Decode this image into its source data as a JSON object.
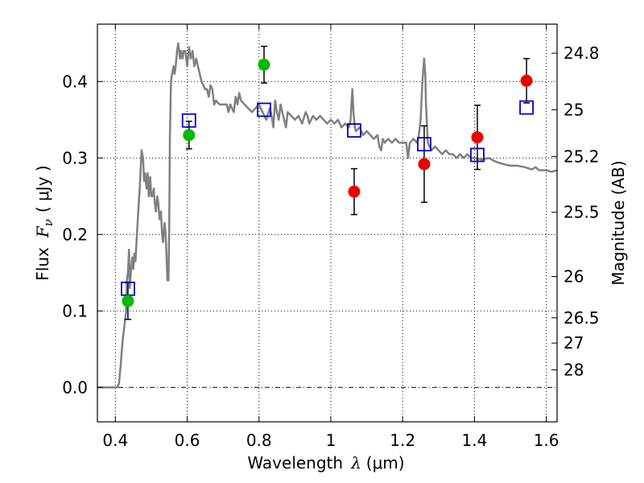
{
  "chart_data": {
    "type": "scatter",
    "xlabel_text": "Wavelength",
    "xlabel_symbol": "λ",
    "xlabel_unit": "(μm)",
    "ylabel_text": "Flux",
    "ylabel_symbol": "F",
    "ylabel_subscript": "ν",
    "ylabel_unit": "( μJy )",
    "y2label": "Magnitude (AB)",
    "xlim": [
      0.35,
      1.63
    ],
    "ylim": [
      -0.045,
      0.475
    ],
    "grid": true,
    "x_ticks": [
      0.4,
      0.6,
      0.8,
      1.0,
      1.2,
      1.4,
      1.6
    ],
    "x_tick_labels": [
      "0.4",
      "0.6",
      "0.8",
      "1",
      "1.2",
      "1.4",
      "1.6"
    ],
    "y_ticks": [
      0.0,
      0.1,
      0.2,
      0.3,
      0.4
    ],
    "y_tick_labels": [
      "0.0",
      "0.1",
      "0.2",
      "0.3",
      "0.4"
    ],
    "mag_ticks": [
      {
        "label": "24.8",
        "flux": 0.437
      },
      {
        "label": "25",
        "flux": 0.363
      },
      {
        "label": "25.2",
        "flux": 0.302
      },
      {
        "label": "25.5",
        "flux": 0.229
      },
      {
        "label": "26",
        "flux": 0.145
      },
      {
        "label": "26.5",
        "flux": 0.091
      },
      {
        "label": "27",
        "flux": 0.058
      },
      {
        "label": "28",
        "flux": 0.023
      }
    ],
    "colors": {
      "sed": "#808080",
      "green": "#00bb00",
      "red": "#ee0000",
      "model": "#0000cc",
      "grid": "#000000"
    },
    "series": [
      {
        "name": "SED model spectrum",
        "kind": "line",
        "points": [
          [
            0.35,
            0.0
          ],
          [
            0.405,
            0.0
          ],
          [
            0.41,
            0.005
          ],
          [
            0.415,
            0.03
          ],
          [
            0.42,
            0.06
          ],
          [
            0.425,
            0.08
          ],
          [
            0.43,
            0.1
          ],
          [
            0.432,
            0.14
          ],
          [
            0.435,
            0.15
          ],
          [
            0.438,
            0.18
          ],
          [
            0.44,
            0.13
          ],
          [
            0.443,
            0.15
          ],
          [
            0.447,
            0.17
          ],
          [
            0.45,
            0.155
          ],
          [
            0.453,
            0.175
          ],
          [
            0.456,
            0.165
          ],
          [
            0.46,
            0.2
          ],
          [
            0.465,
            0.24
          ],
          [
            0.468,
            0.26
          ],
          [
            0.47,
            0.28
          ],
          [
            0.473,
            0.31
          ],
          [
            0.477,
            0.3
          ],
          [
            0.48,
            0.27
          ],
          [
            0.483,
            0.28
          ],
          [
            0.487,
            0.26
          ],
          [
            0.49,
            0.28
          ],
          [
            0.493,
            0.25
          ],
          [
            0.497,
            0.275
          ],
          [
            0.5,
            0.25
          ],
          [
            0.503,
            0.25
          ],
          [
            0.507,
            0.26
          ],
          [
            0.51,
            0.24
          ],
          [
            0.513,
            0.23
          ],
          [
            0.517,
            0.25
          ],
          [
            0.52,
            0.24
          ],
          [
            0.523,
            0.22
          ],
          [
            0.527,
            0.23
          ],
          [
            0.53,
            0.2
          ],
          [
            0.533,
            0.19
          ],
          [
            0.537,
            0.215
          ],
          [
            0.54,
            0.2
          ],
          [
            0.545,
            0.14
          ],
          [
            0.548,
            0.14
          ],
          [
            0.55,
            0.21
          ],
          [
            0.552,
            0.33
          ],
          [
            0.555,
            0.4
          ],
          [
            0.558,
            0.41
          ],
          [
            0.562,
            0.42
          ],
          [
            0.565,
            0.41
          ],
          [
            0.568,
            0.42
          ],
          [
            0.572,
            0.44
          ],
          [
            0.575,
            0.45
          ],
          [
            0.58,
            0.43
          ],
          [
            0.583,
            0.44
          ],
          [
            0.587,
            0.43
          ],
          [
            0.59,
            0.44
          ],
          [
            0.595,
            0.44
          ],
          [
            0.6,
            0.42
          ],
          [
            0.605,
            0.445
          ],
          [
            0.61,
            0.43
          ],
          [
            0.615,
            0.44
          ],
          [
            0.62,
            0.42
          ],
          [
            0.625,
            0.43
          ],
          [
            0.63,
            0.42
          ],
          [
            0.635,
            0.41
          ],
          [
            0.64,
            0.4
          ],
          [
            0.645,
            0.395
          ],
          [
            0.65,
            0.39
          ],
          [
            0.655,
            0.39
          ],
          [
            0.66,
            0.38
          ],
          [
            0.665,
            0.395
          ],
          [
            0.67,
            0.39
          ],
          [
            0.675,
            0.37
          ],
          [
            0.68,
            0.375
          ],
          [
            0.69,
            0.37
          ],
          [
            0.7,
            0.37
          ],
          [
            0.71,
            0.37
          ],
          [
            0.715,
            0.36
          ],
          [
            0.72,
            0.37
          ],
          [
            0.73,
            0.36
          ],
          [
            0.735,
            0.38
          ],
          [
            0.74,
            0.37
          ],
          [
            0.745,
            0.385
          ],
          [
            0.75,
            0.375
          ],
          [
            0.76,
            0.37
          ],
          [
            0.77,
            0.365
          ],
          [
            0.78,
            0.36
          ],
          [
            0.79,
            0.365
          ],
          [
            0.8,
            0.37
          ],
          [
            0.81,
            0.36
          ],
          [
            0.82,
            0.35
          ],
          [
            0.83,
            0.365
          ],
          [
            0.835,
            0.355
          ],
          [
            0.84,
            0.34
          ],
          [
            0.845,
            0.375
          ],
          [
            0.85,
            0.36
          ],
          [
            0.855,
            0.35
          ],
          [
            0.86,
            0.37
          ],
          [
            0.865,
            0.36
          ],
          [
            0.87,
            0.35
          ],
          [
            0.875,
            0.34
          ],
          [
            0.88,
            0.36
          ],
          [
            0.89,
            0.355
          ],
          [
            0.9,
            0.35
          ],
          [
            0.91,
            0.355
          ],
          [
            0.92,
            0.345
          ],
          [
            0.93,
            0.36
          ],
          [
            0.935,
            0.355
          ],
          [
            0.94,
            0.345
          ],
          [
            0.95,
            0.355
          ],
          [
            0.96,
            0.35
          ],
          [
            0.97,
            0.355
          ],
          [
            0.98,
            0.35
          ],
          [
            0.99,
            0.345
          ],
          [
            1.0,
            0.35
          ],
          [
            1.01,
            0.345
          ],
          [
            1.02,
            0.35
          ],
          [
            1.03,
            0.34
          ],
          [
            1.04,
            0.345
          ],
          [
            1.05,
            0.34
          ],
          [
            1.055,
            0.35
          ],
          [
            1.06,
            0.39
          ],
          [
            1.063,
            0.36
          ],
          [
            1.067,
            0.34
          ],
          [
            1.07,
            0.335
          ],
          [
            1.08,
            0.34
          ],
          [
            1.09,
            0.33
          ],
          [
            1.1,
            0.335
          ],
          [
            1.11,
            0.33
          ],
          [
            1.12,
            0.325
          ],
          [
            1.13,
            0.33
          ],
          [
            1.135,
            0.315
          ],
          [
            1.14,
            0.31
          ],
          [
            1.145,
            0.325
          ],
          [
            1.15,
            0.32
          ],
          [
            1.16,
            0.325
          ],
          [
            1.17,
            0.32
          ],
          [
            1.18,
            0.325
          ],
          [
            1.19,
            0.32
          ],
          [
            1.2,
            0.32
          ],
          [
            1.21,
            0.32
          ],
          [
            1.215,
            0.3
          ],
          [
            1.22,
            0.32
          ],
          [
            1.23,
            0.325
          ],
          [
            1.24,
            0.32
          ],
          [
            1.245,
            0.33
          ],
          [
            1.25,
            0.35
          ],
          [
            1.255,
            0.4
          ],
          [
            1.26,
            0.43
          ],
          [
            1.263,
            0.41
          ],
          [
            1.265,
            0.37
          ],
          [
            1.27,
            0.32
          ],
          [
            1.28,
            0.31
          ],
          [
            1.29,
            0.315
          ],
          [
            1.3,
            0.31
          ],
          [
            1.31,
            0.305
          ],
          [
            1.32,
            0.31
          ],
          [
            1.33,
            0.305
          ],
          [
            1.34,
            0.305
          ],
          [
            1.35,
            0.3
          ],
          [
            1.36,
            0.305
          ],
          [
            1.37,
            0.3
          ],
          [
            1.38,
            0.305
          ],
          [
            1.39,
            0.3
          ],
          [
            1.4,
            0.3
          ],
          [
            1.42,
            0.298
          ],
          [
            1.44,
            0.3
          ],
          [
            1.46,
            0.295
          ],
          [
            1.48,
            0.292
          ],
          [
            1.5,
            0.29
          ],
          [
            1.52,
            0.29
          ],
          [
            1.54,
            0.288
          ],
          [
            1.56,
            0.285
          ],
          [
            1.57,
            0.288
          ],
          [
            1.58,
            0.284
          ],
          [
            1.6,
            0.284
          ],
          [
            1.615,
            0.282
          ],
          [
            1.63,
            0.284
          ]
        ]
      },
      {
        "name": "Green photometry",
        "kind": "errorbar",
        "points": [
          {
            "x": 0.435,
            "y": 0.113,
            "err": 0.024
          },
          {
            "x": 0.605,
            "y": 0.33,
            "err": 0.018
          },
          {
            "x": 0.814,
            "y": 0.422,
            "err": 0.024
          }
        ]
      },
      {
        "name": "Red photometry",
        "kind": "errorbar",
        "points": [
          {
            "x": 1.065,
            "y": 0.256,
            "err": 0.03
          },
          {
            "x": 1.26,
            "y": 0.292,
            "err": 0.05
          },
          {
            "x": 1.408,
            "y": 0.327,
            "err": 0.042
          },
          {
            "x": 1.545,
            "y": 0.401,
            "err": 0.029
          }
        ]
      },
      {
        "name": "Model synthetic photometry",
        "kind": "squares",
        "points": [
          {
            "x": 0.435,
            "y": 0.129
          },
          {
            "x": 0.605,
            "y": 0.349
          },
          {
            "x": 0.814,
            "y": 0.363
          },
          {
            "x": 1.065,
            "y": 0.336
          },
          {
            "x": 1.26,
            "y": 0.318
          },
          {
            "x": 1.408,
            "y": 0.304
          },
          {
            "x": 1.545,
            "y": 0.366
          }
        ]
      }
    ]
  }
}
